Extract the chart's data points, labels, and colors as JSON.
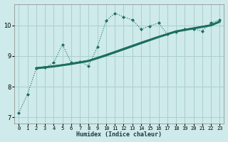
{
  "xlabel": "Humidex (Indice chaleur)",
  "bg_color": "#ceeaea",
  "grid_color": "#aacfcf",
  "line_color": "#1a6e60",
  "xlim": [
    -0.5,
    23.5
  ],
  "ylim": [
    6.8,
    10.7
  ],
  "yticks": [
    7,
    8,
    9,
    10
  ],
  "xticks": [
    0,
    1,
    2,
    3,
    4,
    5,
    6,
    7,
    8,
    9,
    10,
    11,
    12,
    13,
    14,
    15,
    16,
    17,
    18,
    19,
    20,
    21,
    22,
    23
  ],
  "s1_x": [
    0,
    1,
    2,
    3,
    4,
    5,
    6,
    7,
    8,
    9,
    10,
    11,
    12,
    13,
    14,
    15,
    16,
    17,
    18,
    19,
    20,
    21,
    22,
    23
  ],
  "s1_y": [
    7.15,
    7.75,
    8.6,
    8.62,
    8.78,
    9.38,
    8.78,
    8.82,
    8.68,
    9.3,
    10.15,
    10.4,
    10.28,
    10.18,
    9.88,
    9.98,
    10.08,
    9.72,
    9.78,
    9.88,
    9.88,
    9.82,
    10.08,
    10.18
  ],
  "s2_x": [
    2,
    4,
    6,
    8,
    10,
    12,
    14,
    16,
    18,
    20,
    22,
    23
  ],
  "s2_y": [
    8.6,
    8.66,
    8.74,
    8.84,
    9.02,
    9.22,
    9.42,
    9.62,
    9.8,
    9.9,
    10.0,
    10.12
  ],
  "s3_x": [
    2,
    4,
    6,
    8,
    10,
    12,
    14,
    16,
    18,
    20,
    22,
    23
  ],
  "s3_y": [
    8.62,
    8.68,
    8.76,
    8.86,
    9.05,
    9.25,
    9.45,
    9.64,
    9.82,
    9.92,
    10.02,
    10.14
  ]
}
